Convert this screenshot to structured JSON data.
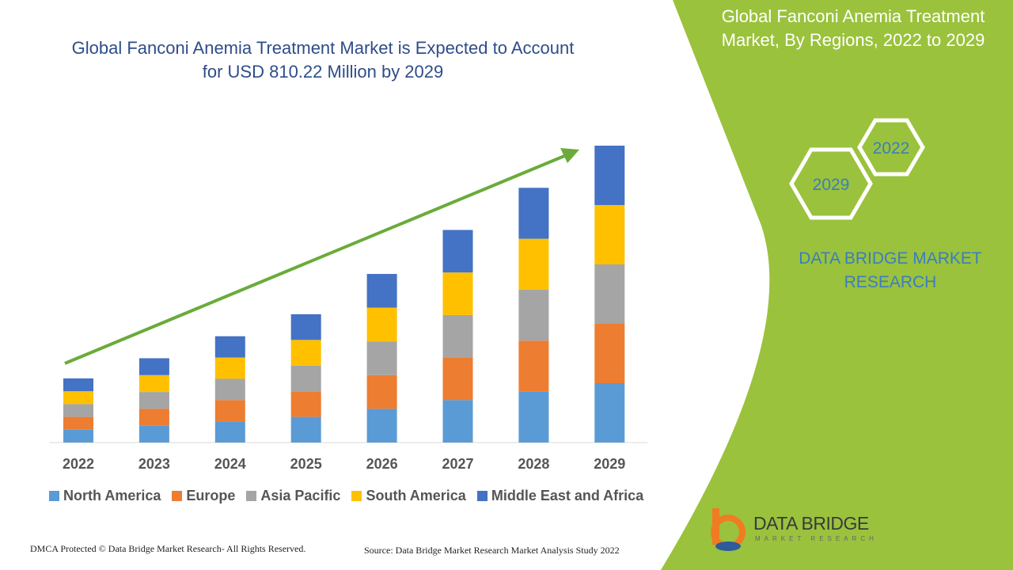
{
  "chart_data": {
    "type": "stacked_bar",
    "title": "Global Fanconi Anemia Treatment Market is Expected to Account for USD 810.22 Million by 2029",
    "categories": [
      "2022",
      "2023",
      "2024",
      "2025",
      "2026",
      "2027",
      "2028",
      "2029"
    ],
    "series": [
      {
        "name": "North America",
        "color": "#5b9bd5",
        "values": [
          35,
          46,
          58,
          70,
          92,
          116,
          139,
          162
        ]
      },
      {
        "name": "Europe",
        "color": "#ed7d31",
        "values": [
          35,
          46,
          58,
          70,
          92,
          116,
          139,
          162
        ]
      },
      {
        "name": "Asia Pacific",
        "color": "#a5a5a5",
        "values": [
          35,
          46,
          58,
          70,
          92,
          116,
          139,
          162
        ]
      },
      {
        "name": "South America",
        "color": "#ffc000",
        "values": [
          35,
          46,
          58,
          70,
          92,
          116,
          139,
          162
        ]
      },
      {
        "name": "Middle East and Africa",
        "color": "#4472c4",
        "values": [
          35,
          46,
          58,
          70,
          92,
          116,
          139,
          162
        ]
      }
    ]
  },
  "side_panel": {
    "title": "Global Fanconi Anemia Treatment Market, By Regions, 2022 to 2029",
    "hexagons": [
      "2022",
      "2029"
    ],
    "brand": "DATA BRIDGE MARKET RESEARCH"
  },
  "logo": {
    "name": "DATA BRIDGE",
    "tagline": "MARKET RESEARCH"
  },
  "footer": {
    "left": "DMCA Protected © Data Bridge Market Research- All Rights Reserved.",
    "right": "Source: Data Bridge Market Research Market Analysis Study 2022"
  }
}
